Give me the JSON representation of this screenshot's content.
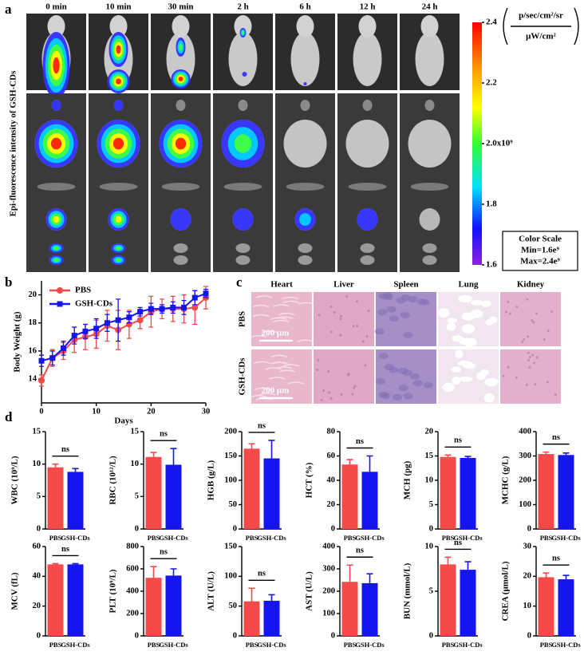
{
  "panel_labels": [
    "a",
    "b",
    "c",
    "d"
  ],
  "imaging": {
    "timepoints": [
      "0 min",
      "10 min",
      "30 min",
      "2 h",
      "6 h",
      "12 h",
      "24 h"
    ],
    "y_label": "Epi-fluorescence intensity of GSH-CDs",
    "units_top": "p/sec/cm²/sr",
    "units_bottom": "μW/cm²",
    "color_scale": {
      "title": "Color Scale",
      "min": "Min=1.6e⁹",
      "max": "Max=2.4e⁹"
    },
    "colorbar": {
      "lim": [
        1.6,
        2.4
      ],
      "ticks": [
        2.4,
        2.2,
        {
          "value": 2.0,
          "label": "2.0x10⁹"
        },
        1.8,
        1.6
      ]
    }
  },
  "histology": {
    "organs": [
      "Heart",
      "Liver",
      "Spleen",
      "Lung",
      "Kidney"
    ],
    "groups": [
      "PBS",
      "GSH-CDs"
    ],
    "scale_bar": "200 μm"
  },
  "chart_data": [
    {
      "type": "line",
      "x_label": "Days",
      "y_label": "Body Weight (g)",
      "x": [
        0,
        2,
        4,
        6,
        8,
        10,
        12,
        14,
        16,
        18,
        20,
        22,
        24,
        26,
        28,
        30
      ],
      "series": [
        {
          "name": "PBS",
          "color": "#f44a4a",
          "marker": "circle",
          "values": [
            13.9,
            15.5,
            16.0,
            16.8,
            17.0,
            17.2,
            17.8,
            17.5,
            17.9,
            18.2,
            18.8,
            19.0,
            19.0,
            19.0,
            19.1,
            19.8
          ],
          "errors": [
            0.4,
            0.6,
            0.6,
            0.9,
            0.9,
            1.0,
            1.1,
            1.4,
            1.0,
            0.6,
            1.1,
            0.7,
            0.9,
            1.0,
            1.2,
            0.8
          ]
        },
        {
          "name": "GSH-CDs",
          "color": "#1515f0",
          "marker": "square",
          "values": [
            15.3,
            15.5,
            16.2,
            17.1,
            17.4,
            17.6,
            18.0,
            18.2,
            18.4,
            18.8,
            19.0,
            19.0,
            19.1,
            19.1,
            19.8,
            20.1
          ],
          "errors": [
            0.4,
            0.5,
            0.5,
            0.6,
            0.5,
            0.7,
            0.6,
            1.5,
            0.4,
            0.3,
            0.4,
            0.3,
            0.4,
            0.5,
            0.5,
            0.3
          ]
        }
      ],
      "xlim": [
        0,
        30
      ],
      "xticks": [
        0,
        10,
        20,
        30
      ],
      "ylim": [
        12.3,
        21
      ],
      "yticks": [
        14,
        16,
        18,
        20
      ],
      "legend": "upper left"
    },
    {
      "type": "bar",
      "y_label": "WBC (10⁹/L)",
      "categories": [
        "PBS",
        "GSH-CDs"
      ],
      "values": [
        9.5,
        8.8
      ],
      "errors": [
        0.5,
        0.5
      ],
      "colors": [
        "#f44a4a",
        "#1515f0"
      ],
      "ylim": [
        0,
        15
      ],
      "yticks": [
        0,
        5,
        10,
        15
      ],
      "annotation": "ns"
    },
    {
      "type": "bar",
      "y_label": "RBC (10¹²/L)",
      "categories": [
        "PBS",
        "GSH-CDs"
      ],
      "values": [
        11.1,
        9.9
      ],
      "errors": [
        0.7,
        2.5
      ],
      "colors": [
        "#f44a4a",
        "#1515f0"
      ],
      "ylim": [
        0,
        15
      ],
      "yticks": [
        0,
        5,
        10,
        15
      ],
      "annotation": "ns"
    },
    {
      "type": "bar",
      "y_label": "HGB (g/L)",
      "categories": [
        "PBS",
        "GSH-CDs"
      ],
      "values": [
        165,
        145
      ],
      "errors": [
        10,
        37
      ],
      "colors": [
        "#f44a4a",
        "#1515f0"
      ],
      "ylim": [
        0,
        200
      ],
      "yticks": [
        0,
        50,
        100,
        150,
        200
      ],
      "annotation": "ns"
    },
    {
      "type": "bar",
      "y_label": "HCT (%)",
      "categories": [
        "PBS",
        "GSH-CDs"
      ],
      "values": [
        53,
        47
      ],
      "errors": [
        4,
        13
      ],
      "colors": [
        "#f44a4a",
        "#1515f0"
      ],
      "ylim": [
        0,
        80
      ],
      "yticks": [
        0,
        20,
        40,
        60,
        80
      ],
      "annotation": "ns"
    },
    {
      "type": "bar",
      "y_label": "MCH (pg)",
      "categories": [
        "PBS",
        "GSH-CDs"
      ],
      "values": [
        14.8,
        14.6
      ],
      "errors": [
        0.4,
        0.3
      ],
      "colors": [
        "#f44a4a",
        "#1515f0"
      ],
      "ylim": [
        0,
        20
      ],
      "yticks": [
        0,
        5,
        10,
        15,
        20
      ],
      "annotation": "ns"
    },
    {
      "type": "bar",
      "y_label": "MCHC (g/L)",
      "categories": [
        "PBS",
        "GSH-CDs"
      ],
      "values": [
        308,
        304
      ],
      "errors": [
        8,
        8
      ],
      "colors": [
        "#f44a4a",
        "#1515f0"
      ],
      "ylim": [
        0,
        400
      ],
      "yticks": [
        0,
        100,
        200,
        300,
        400
      ],
      "annotation": "ns"
    },
    {
      "type": "bar",
      "y_label": "MCV (fL)",
      "categories": [
        "PBS",
        "GSH-CDs"
      ],
      "values": [
        48,
        48
      ],
      "errors": [
        0.5,
        0.5
      ],
      "colors": [
        "#f44a4a",
        "#1515f0"
      ],
      "ylim": [
        0,
        60
      ],
      "yticks": [
        0,
        20,
        40,
        60
      ],
      "annotation": "ns"
    },
    {
      "type": "bar",
      "y_label": "PLT (10⁹/L)",
      "categories": [
        "PBS",
        "GSH-CDs"
      ],
      "values": [
        520,
        540
      ],
      "errors": [
        100,
        60
      ],
      "colors": [
        "#f44a4a",
        "#1515f0"
      ],
      "ylim": [
        0,
        800
      ],
      "yticks": [
        0,
        200,
        400,
        600,
        800
      ],
      "annotation": "ns"
    },
    {
      "type": "bar",
      "y_label": "ALT (U/L)",
      "categories": [
        "PBS",
        "GSH-CDs"
      ],
      "values": [
        58,
        59
      ],
      "errors": [
        22,
        10
      ],
      "colors": [
        "#f44a4a",
        "#1515f0"
      ],
      "ylim": [
        0,
        150
      ],
      "yticks": [
        0,
        50,
        100,
        150
      ],
      "annotation": "ns"
    },
    {
      "type": "bar",
      "y_label": "AST (U/L)",
      "categories": [
        "PBS",
        "GSH-CDs"
      ],
      "values": [
        242,
        236
      ],
      "errors": [
        75,
        42
      ],
      "colors": [
        "#f44a4a",
        "#1515f0"
      ],
      "ylim": [
        0,
        400
      ],
      "yticks": [
        0,
        100,
        200,
        300,
        400
      ],
      "annotation": "ns"
    },
    {
      "type": "bar",
      "y_label": "BUN (mmol/L)",
      "categories": [
        "PBS",
        "GSH-CDs"
      ],
      "values": [
        8.0,
        7.4
      ],
      "errors": [
        0.8,
        0.9
      ],
      "colors": [
        "#f44a4a",
        "#1515f0"
      ],
      "ylim": [
        0,
        10
      ],
      "yticks": [
        0,
        5,
        10
      ],
      "annotation": "ns"
    },
    {
      "type": "bar",
      "y_label": "CREA (μmol/L)",
      "categories": [
        "PBS",
        "GSH-CDs"
      ],
      "values": [
        19.7,
        19.0
      ],
      "errors": [
        1.4,
        1.3
      ],
      "colors": [
        "#f44a4a",
        "#1515f0"
      ],
      "ylim": [
        0,
        30
      ],
      "yticks": [
        0,
        10,
        20,
        30
      ],
      "annotation": "ns"
    }
  ]
}
